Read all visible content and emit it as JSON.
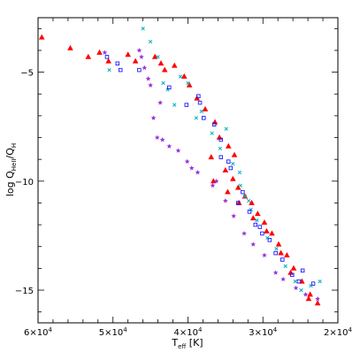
{
  "chart_data": {
    "type": "scatter",
    "xlabel": "T",
    "xlabel_sub": "eff",
    "xlabel_unit": "[K]",
    "ylabel": "log Q",
    "ylabel_sub1": "HeII",
    "ylabel_sub2": "H",
    "xlim": [
      60000,
      20000
    ],
    "ylim": [
      -16.5,
      -2.5
    ],
    "x_ticks": [
      {
        "value": 60000,
        "mantissa": "6×10",
        "exp": "4"
      },
      {
        "value": 50000,
        "mantissa": "5×10",
        "exp": "4"
      },
      {
        "value": 40000,
        "mantissa": "4×10",
        "exp": "4"
      },
      {
        "value": 30000,
        "mantissa": "3×10",
        "exp": "4"
      },
      {
        "value": 20000,
        "mantissa": "2×10",
        "exp": "4"
      }
    ],
    "y_ticks": [
      {
        "value": -5,
        "label": "−5"
      },
      {
        "value": -10,
        "label": "−10"
      },
      {
        "value": -15,
        "label": "−15"
      }
    ],
    "grid": false,
    "legend": "none",
    "series": [
      {
        "marker": "triangle",
        "color": "#ff0000",
        "points": [
          [
            59500,
            -3.4
          ],
          [
            55700,
            -3.9
          ],
          [
            53300,
            -4.3
          ],
          [
            51800,
            -4.1
          ],
          [
            50600,
            -4.5
          ],
          [
            48000,
            -4.2
          ],
          [
            47000,
            -4.5
          ],
          [
            44400,
            -4.3
          ],
          [
            43600,
            -4.6
          ],
          [
            43100,
            -4.9
          ],
          [
            41800,
            -4.7
          ],
          [
            40500,
            -5.2
          ],
          [
            39800,
            -5.6
          ],
          [
            38800,
            -6.2
          ],
          [
            37700,
            -6.7
          ],
          [
            36400,
            -7.3
          ],
          [
            35800,
            -8.0
          ],
          [
            34600,
            -8.4
          ],
          [
            33800,
            -8.8
          ],
          [
            36900,
            -8.9
          ],
          [
            35000,
            -9.5
          ],
          [
            34000,
            -9.9
          ],
          [
            33300,
            -10.3
          ],
          [
            32400,
            -10.7
          ],
          [
            31500,
            -11.0
          ],
          [
            30700,
            -11.5
          ],
          [
            29800,
            -11.9
          ],
          [
            28800,
            -12.4
          ],
          [
            27900,
            -12.9
          ],
          [
            26800,
            -13.4
          ],
          [
            25900,
            -14.0
          ],
          [
            24800,
            -14.6
          ],
          [
            23700,
            -15.2
          ],
          [
            22700,
            -15.6
          ],
          [
            36600,
            -10.0
          ],
          [
            34700,
            -10.5
          ],
          [
            33200,
            -11.0
          ],
          [
            31300,
            -11.7
          ],
          [
            29500,
            -12.3
          ],
          [
            27600,
            -13.3
          ],
          [
            26300,
            -14.2
          ],
          [
            23900,
            -15.4
          ]
        ]
      },
      {
        "marker": "x-cross",
        "color": "#00b0c0",
        "points": [
          [
            46000,
            -3.0
          ],
          [
            45000,
            -3.6
          ],
          [
            44000,
            -4.3
          ],
          [
            43300,
            -5.5
          ],
          [
            42700,
            -5.8
          ],
          [
            41000,
            -5.2
          ],
          [
            40000,
            -5.5
          ],
          [
            38200,
            -6.8
          ],
          [
            36800,
            -7.8
          ],
          [
            35700,
            -8.5
          ],
          [
            34900,
            -7.6
          ],
          [
            34000,
            -9.2
          ],
          [
            33000,
            -10.2
          ],
          [
            32400,
            -10.7
          ],
          [
            31600,
            -11.3
          ],
          [
            30800,
            -11.8
          ],
          [
            29400,
            -12.6
          ],
          [
            28200,
            -13.1
          ],
          [
            27000,
            -13.9
          ],
          [
            25700,
            -14.6
          ],
          [
            24900,
            -15.0
          ],
          [
            23600,
            -14.8
          ],
          [
            22400,
            -14.6
          ],
          [
            33100,
            -9.6
          ],
          [
            38900,
            -7.1
          ],
          [
            41800,
            -6.5
          ],
          [
            50500,
            -4.9
          ],
          [
            31900,
            -10.9
          ]
        ]
      },
      {
        "marker": "square",
        "color": "#1a1aff",
        "points": [
          [
            50800,
            -4.3
          ],
          [
            49400,
            -4.6
          ],
          [
            49000,
            -4.9
          ],
          [
            46500,
            -4.9
          ],
          [
            42500,
            -5.7
          ],
          [
            40200,
            -6.5
          ],
          [
            38600,
            -6.1
          ],
          [
            38400,
            -6.4
          ],
          [
            37900,
            -7.1
          ],
          [
            36500,
            -7.4
          ],
          [
            35600,
            -8.1
          ],
          [
            34600,
            -9.1
          ],
          [
            34300,
            -9.4
          ],
          [
            32700,
            -10.5
          ],
          [
            31800,
            -11.4
          ],
          [
            30400,
            -12.1
          ],
          [
            30100,
            -12.4
          ],
          [
            29100,
            -12.7
          ],
          [
            28300,
            -13.3
          ],
          [
            27400,
            -13.6
          ],
          [
            26100,
            -14.3
          ],
          [
            25200,
            -14.6
          ],
          [
            24700,
            -14.1
          ],
          [
            23300,
            -14.7
          ],
          [
            35600,
            -8.9
          ],
          [
            33300,
            -11.0
          ],
          [
            31000,
            -12.0
          ]
        ]
      },
      {
        "marker": "star",
        "color": "#9933dd",
        "points": [
          [
            51100,
            -4.1
          ],
          [
            46500,
            -4.0
          ],
          [
            46200,
            -4.3
          ],
          [
            45800,
            -4.8
          ],
          [
            45300,
            -5.3
          ],
          [
            45000,
            -5.6
          ],
          [
            44600,
            -7.1
          ],
          [
            44100,
            -8.0
          ],
          [
            43400,
            -8.1
          ],
          [
            42500,
            -8.4
          ],
          [
            41300,
            -8.6
          ],
          [
            40100,
            -9.1
          ],
          [
            38700,
            -9.6
          ],
          [
            36700,
            -10.2
          ],
          [
            35000,
            -10.9
          ],
          [
            33900,
            -11.6
          ],
          [
            32500,
            -12.4
          ],
          [
            31300,
            -12.9
          ],
          [
            29800,
            -13.4
          ],
          [
            28300,
            -14.2
          ],
          [
            27300,
            -14.5
          ],
          [
            25600,
            -14.9
          ],
          [
            24300,
            -15.2
          ],
          [
            22700,
            -15.4
          ],
          [
            43700,
            -6.4
          ],
          [
            39500,
            -9.4
          ],
          [
            36200,
            -10.0
          ]
        ]
      }
    ]
  }
}
